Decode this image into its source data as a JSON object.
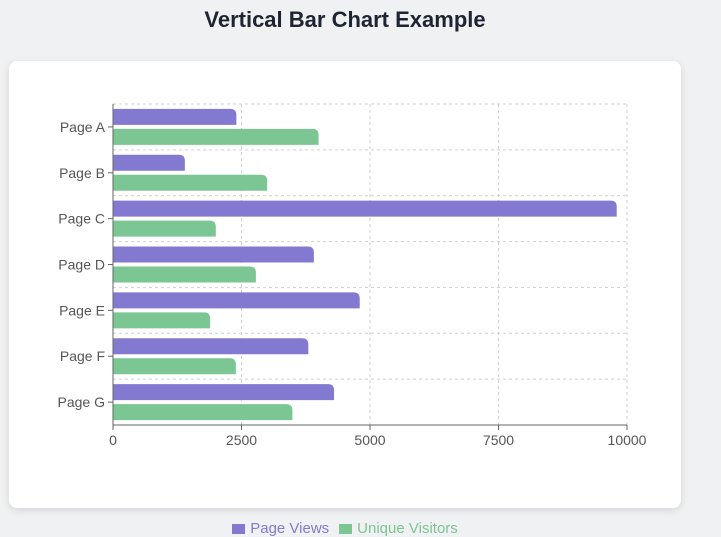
{
  "page": {
    "title": "Vertical Bar Chart Example"
  },
  "colors": {
    "page_views": "#8479d1",
    "unique_visitors": "#7bc693",
    "grid": "#cfcfcf",
    "axis": "#666666"
  },
  "chart_data": {
    "type": "bar",
    "orientation": "horizontal",
    "categories": [
      "Page A",
      "Page B",
      "Page C",
      "Page D",
      "Page E",
      "Page F",
      "Page G"
    ],
    "series": [
      {
        "name": "Page Views",
        "values": [
          2400,
          1398,
          9800,
          3908,
          4800,
          3800,
          4300
        ]
      },
      {
        "name": "Unique Visitors",
        "values": [
          4000,
          3000,
          2000,
          2780,
          1890,
          2390,
          3490
        ]
      }
    ],
    "xlim": [
      0,
      10000
    ],
    "xticks": [
      0,
      2500,
      5000,
      7500,
      10000
    ],
    "grid": true,
    "legend_position": "bottom-center"
  }
}
